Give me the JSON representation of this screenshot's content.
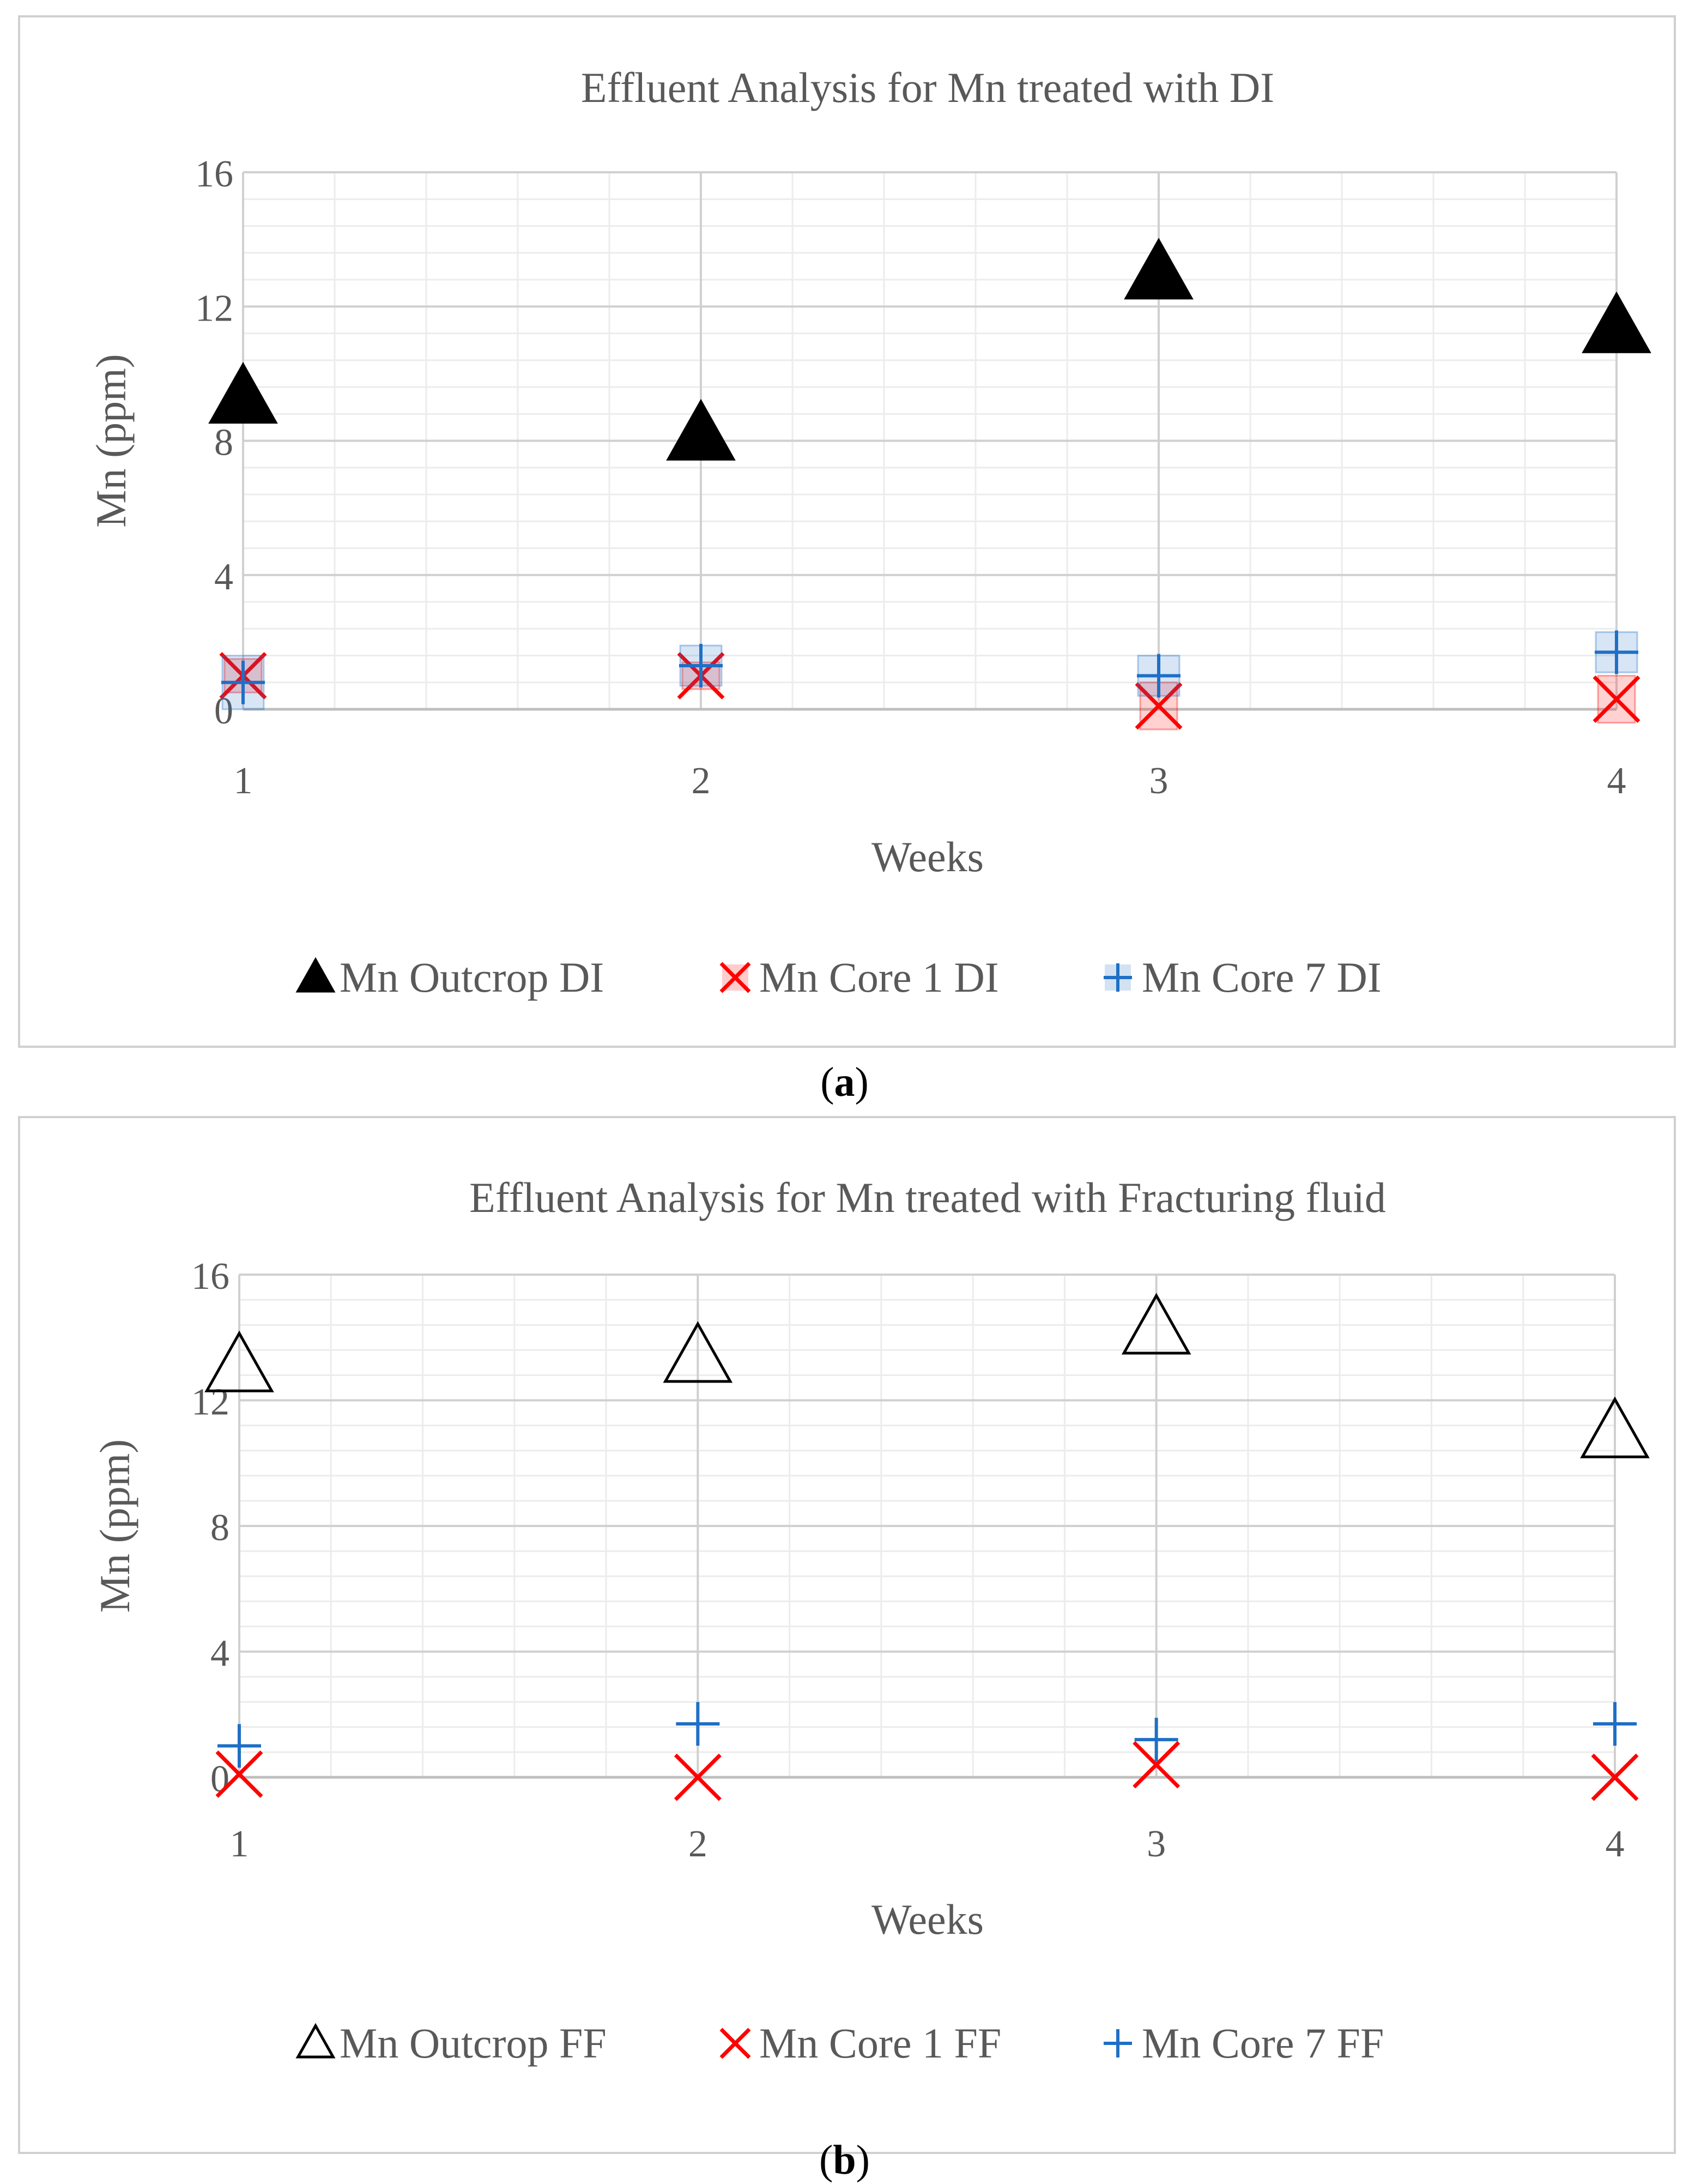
{
  "figure_labels": {
    "a_open": "(",
    "a_letter": "a",
    "a_close": ")",
    "b_open": "(",
    "b_letter": "b",
    "b_close": ")"
  },
  "chart_data": [
    {
      "type": "scatter",
      "title": "Effluent Analysis for Mn treated with DI",
      "xlabel": "Weeks",
      "ylabel": "Mn (ppm)",
      "xlim": [
        1,
        4
      ],
      "ylim": [
        0,
        16
      ],
      "xticks": [
        "1",
        "2",
        "3",
        "4"
      ],
      "yticks": [
        "0",
        "4",
        "8",
        "12",
        "16"
      ],
      "grid": true,
      "legend_position": "bottom",
      "series": [
        {
          "name": "Mn Outcrop DI",
          "marker": "filled-triangle",
          "color": "#000000",
          "x": [
            1,
            2,
            3,
            4
          ],
          "y": [
            9.3,
            8.2,
            13.0,
            11.4
          ],
          "error": [
            0,
            0,
            0,
            0
          ]
        },
        {
          "name": "Mn Core 1 DI",
          "marker": "asterisk",
          "color": "#ff0000",
          "x": [
            1,
            2,
            3,
            4
          ],
          "y": [
            1.0,
            1.0,
            0.1,
            0.3
          ],
          "error": [
            0.5,
            0.4,
            0.7,
            0.7
          ]
        },
        {
          "name": "Mn Core 7 DI",
          "marker": "plus",
          "color": "#1f6fc5",
          "x": [
            1,
            2,
            3,
            4
          ],
          "y": [
            0.8,
            1.3,
            1.0,
            1.7
          ],
          "error": [
            0.8,
            0.6,
            0.6,
            0.6
          ]
        }
      ]
    },
    {
      "type": "scatter",
      "title": "Effluent Analysis for Mn treated with Fracturing fluid",
      "xlabel": "Weeks",
      "ylabel": "Mn (ppm)",
      "xlim": [
        1,
        4
      ],
      "ylim": [
        0,
        16
      ],
      "xticks": [
        "1",
        "2",
        "3",
        "4"
      ],
      "yticks": [
        "0",
        "4",
        "8",
        "12",
        "16"
      ],
      "grid": true,
      "legend_position": "bottom",
      "series": [
        {
          "name": "Mn Outcrop FF",
          "marker": "open-triangle",
          "color": "#000000",
          "x": [
            1,
            2,
            3,
            4
          ],
          "y": [
            13.1,
            13.4,
            14.3,
            11.0
          ],
          "error": [
            0,
            0,
            0,
            0
          ]
        },
        {
          "name": "Mn Core 1 FF",
          "marker": "asterisk",
          "color": "#ff0000",
          "x": [
            1,
            2,
            3,
            4
          ],
          "y": [
            0.1,
            0.0,
            0.4,
            0.0
          ],
          "error": [
            0,
            0,
            0,
            0
          ]
        },
        {
          "name": "Mn Core 7 FF",
          "marker": "plus",
          "color": "#1f6fc5",
          "x": [
            1,
            2,
            3,
            4
          ],
          "y": [
            1.0,
            1.7,
            1.2,
            1.7
          ],
          "error": [
            0,
            0,
            0,
            0
          ]
        }
      ]
    }
  ]
}
